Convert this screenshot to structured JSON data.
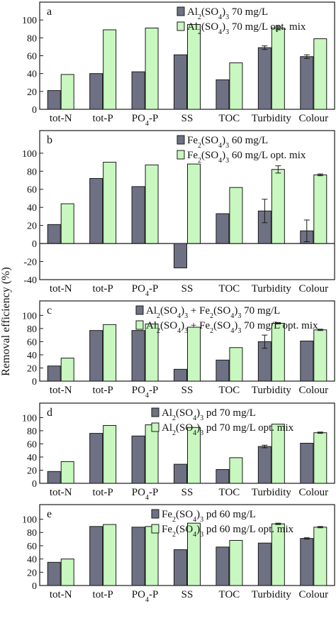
{
  "ylabel": "Removal efficiency (%)",
  "colors": {
    "series1": "#6e7183",
    "series2": "#c8f7c0",
    "stroke": "#1a1a1a"
  },
  "chart_data": [
    {
      "type": "bar",
      "panel": "a",
      "categories": [
        "tot-N",
        "tot-P",
        "PO4-P",
        "SS",
        "TOC",
        "Turbidity",
        "Colour"
      ],
      "series": [
        {
          "name": "Al2(SO4)3 70 mg/L",
          "values": [
            21,
            40,
            42,
            61,
            33,
            69,
            59
          ],
          "errors": [
            0,
            0,
            0,
            0,
            0,
            2,
            2
          ]
        },
        {
          "name": "Al2(SO4)3 70 mg/L opt. mix",
          "values": [
            39,
            89,
            91,
            95,
            52,
            91,
            79
          ],
          "errors": [
            0,
            0,
            0,
            0,
            0,
            2,
            0
          ]
        }
      ],
      "yticks": [
        0,
        20,
        40,
        60,
        80,
        100
      ],
      "ylim": [
        0,
        120
      ]
    },
    {
      "type": "bar",
      "panel": "b",
      "categories": [
        "tot-N",
        "tot-P",
        "PO4-P",
        "SS",
        "TOC",
        "Turbidity",
        "Colour"
      ],
      "series": [
        {
          "name": "Fe2(SO4)3 60 mg/L",
          "values": [
            21,
            72,
            63,
            -27,
            33,
            36,
            14
          ],
          "errors": [
            0,
            0,
            0,
            0,
            0,
            13,
            12
          ]
        },
        {
          "name": "Fe2(SO4)3 60 mg/L opt. mix",
          "values": [
            44,
            90,
            87,
            88,
            62,
            82,
            76
          ],
          "errors": [
            0,
            0,
            0,
            0,
            0,
            4,
            1
          ]
        }
      ],
      "yticks": [
        -40,
        -20,
        0,
        20,
        40,
        60,
        80,
        100
      ],
      "ylim": [
        -40,
        125
      ]
    },
    {
      "type": "bar",
      "panel": "c",
      "categories": [
        "tot-N",
        "tot-P",
        "PO4-P",
        "SS",
        "TOC",
        "Turbidity",
        "Colour"
      ],
      "series": [
        {
          "name": "Al2(SO4)3 + Fe2(SO4)3 70 mg/L",
          "values": [
            23,
            77,
            77,
            18,
            32,
            60,
            61
          ],
          "errors": [
            0,
            0,
            0,
            0,
            0,
            10,
            0
          ]
        },
        {
          "name": "Al2(SO4)3 + Fe2(SO4)3 70 mg/L opt. mix",
          "values": [
            35,
            86,
            87,
            82,
            51,
            88,
            78
          ],
          "errors": [
            0,
            0,
            0,
            0,
            0,
            1,
            1
          ]
        }
      ],
      "yticks": [
        0,
        20,
        40,
        60,
        80,
        100
      ],
      "ylim": [
        0,
        122
      ]
    },
    {
      "type": "bar",
      "panel": "d",
      "categories": [
        "tot-N",
        "tot-P",
        "PO4-P",
        "SS",
        "TOC",
        "Turbidity",
        "Colour"
      ],
      "series": [
        {
          "name": "Al2(SO4)3 pd 70 mg/L",
          "values": [
            18,
            76,
            72,
            29,
            21,
            56,
            61
          ],
          "errors": [
            0,
            0,
            0,
            0,
            0,
            2,
            0
          ]
        },
        {
          "name": "Al2(SO4)3 pd 70 mg/L opt. mix",
          "values": [
            33,
            88,
            89,
            85,
            39,
            90,
            77
          ],
          "errors": [
            0,
            0,
            0,
            0,
            0,
            0,
            1
          ]
        }
      ],
      "yticks": [
        0,
        20,
        40,
        60,
        80,
        100
      ],
      "ylim": [
        0,
        122
      ]
    },
    {
      "type": "bar",
      "panel": "e",
      "categories": [
        "tot-N",
        "tot-P",
        "PO4-P",
        "SS",
        "TOC",
        "Turbidity",
        "Colour"
      ],
      "series": [
        {
          "name": "Fe2(SO4)3 pd 60 mg/L",
          "values": [
            35,
            89,
            88,
            54,
            58,
            64,
            71
          ],
          "errors": [
            0,
            0,
            0,
            0,
            0,
            0,
            1
          ]
        },
        {
          "name": "Fe2(SO4)3 pd 60 mg/L opt. mix",
          "values": [
            40,
            92,
            89,
            94,
            68,
            93,
            88
          ],
          "errors": [
            0,
            0,
            0,
            0,
            0,
            1,
            1
          ]
        }
      ],
      "yticks": [
        0,
        20,
        40,
        60,
        80,
        100
      ],
      "ylim": [
        0,
        122
      ]
    }
  ]
}
